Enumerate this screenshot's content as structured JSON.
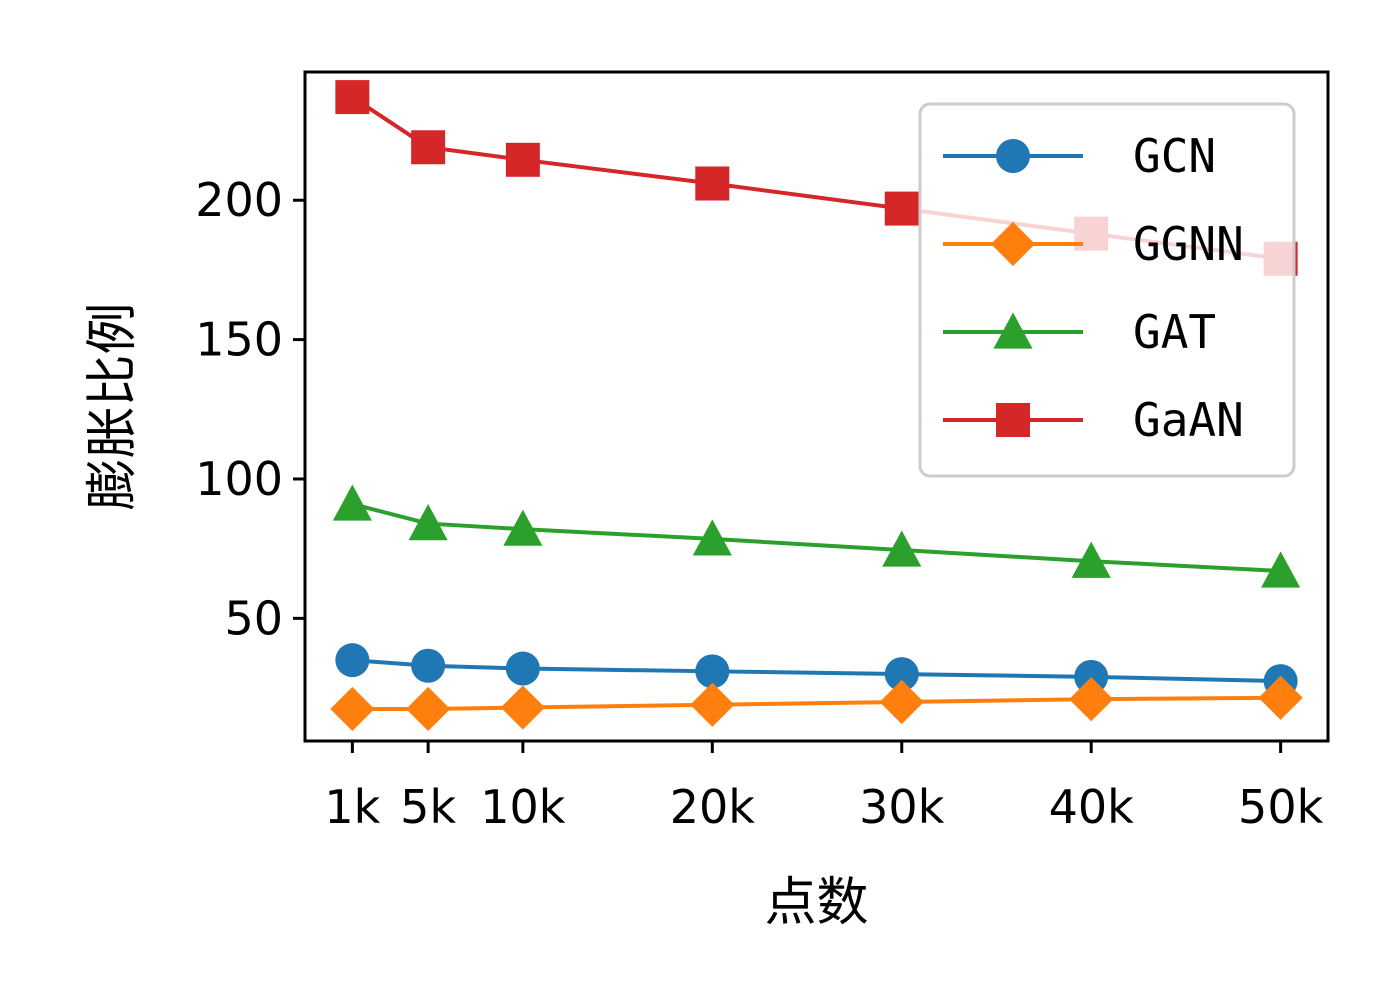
{
  "chart_data": {
    "type": "line",
    "title": "",
    "xlabel": "点数",
    "ylabel": "膨胀比例",
    "x": [
      1,
      5,
      10,
      20,
      30,
      40,
      50
    ],
    "x_tick_labels": [
      "1k",
      "5k",
      "10k",
      "20k",
      "30k",
      "40k",
      "50k"
    ],
    "y_ticks": [
      50,
      100,
      150,
      200
    ],
    "y_tick_labels": [
      "50",
      "100",
      "150",
      "200"
    ],
    "xlim": [
      -1.5,
      52.5
    ],
    "ylim": [
      6,
      246
    ],
    "grid": false,
    "legend_position": "top-right",
    "series": [
      {
        "name": "GCN",
        "color": "#1f77b4",
        "marker": "circle",
        "values": [
          35,
          33,
          32,
          31,
          30,
          29,
          27.5
        ]
      },
      {
        "name": "GGNN",
        "color": "#ff7f0e",
        "marker": "diamond",
        "values": [
          17.5,
          17.5,
          18,
          19,
          20,
          21,
          21.5
        ]
      },
      {
        "name": "GAT",
        "color": "#2ca02c",
        "marker": "triangle",
        "values": [
          91,
          84,
          82,
          78.5,
          74.5,
          70.5,
          67
        ]
      },
      {
        "name": "GaAN",
        "color": "#d62728",
        "marker": "square",
        "values": [
          237,
          219,
          214.5,
          206,
          197,
          188,
          179
        ]
      }
    ]
  }
}
